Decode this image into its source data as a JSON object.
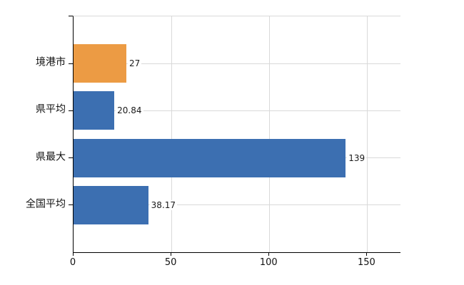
{
  "chart_data": {
    "type": "bar",
    "orientation": "horizontal",
    "title": "",
    "xlabel": "",
    "ylabel": "",
    "categories": [
      "境港市",
      "県平均",
      "県最大",
      "全国平均"
    ],
    "values": [
      27,
      20.84,
      139,
      38.17
    ],
    "value_labels": [
      "27",
      "20.84",
      "139",
      "38.17"
    ],
    "bar_colors": [
      "#ec9b44",
      "#3c6fb1",
      "#3c6fb1",
      "#3c6fb1"
    ],
    "x_ticks": [
      0,
      50,
      100,
      150
    ],
    "x_tick_labels": [
      "0",
      "50",
      "100",
      "150"
    ],
    "xlim": [
      0,
      167
    ],
    "grid": "on",
    "legend": "none",
    "colors": {
      "grid": "#d9d9d9",
      "axis": "#000000",
      "text": "#111111",
      "value_text": "#1a1a1a",
      "background": "#ffffff",
      "accent_orange": "#ec9b44",
      "accent_blue": "#3c6fb1"
    }
  }
}
